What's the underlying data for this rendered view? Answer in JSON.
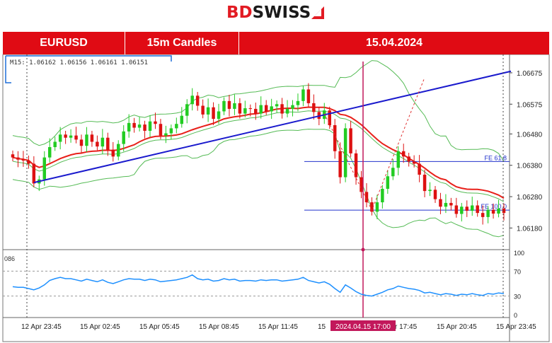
{
  "brand": {
    "part1": "BD",
    "part2": "SWISS",
    "red": "#e21b23"
  },
  "header": {
    "symbol": "EURUSD",
    "timeframe": "15m Candles",
    "date": "15.04.2024",
    "bg": "#e00b14"
  },
  "chart_data": {
    "type": "candlestick",
    "info_line": "M15: 1.06162 1.06156 1.06161 1.06151",
    "ylim": [
      1.0612,
      1.0672
    ],
    "y_ticks": [
      1.06675,
      1.06575,
      1.0648,
      1.0638,
      1.0628,
      1.0618
    ],
    "y_tick_labels": [
      "1.06675",
      "1.06575",
      "1.06480",
      "1.06380",
      "1.06280",
      "1.06180"
    ],
    "x_tick_labels": [
      "12 Apr 23:45",
      "15 Apr 02:45",
      "15 Apr 05:45",
      "15 Apr 08:45",
      "15 Apr 11:45",
      "15 Apr 14:45",
      "15 Apr 17:45",
      "15 Apr 20:45",
      "15 Apr 23:45"
    ],
    "x_tick_prefix_visible": "15",
    "x_tick_suffix_visible": "r 17:45",
    "crosshair_label": "2024.04.15 17:00",
    "fib_levels": [
      {
        "label": "FE 61.8",
        "value": 1.06392
      },
      {
        "label": "FE 100.0",
        "value": 1.06237
      }
    ],
    "trendline": {
      "from": 1.06325,
      "to": 1.0668,
      "color": "#1a1acd"
    },
    "colors": {
      "bull": "#22cc22",
      "bear": "#dd1111",
      "ma": "#e8201a",
      "bands": "#55bb55",
      "rsi": "#1e90ff",
      "crosshair": "#c2185b",
      "fib": "#2233cc"
    },
    "close": [
      1.06405,
      1.06398,
      1.06395,
      1.06385,
      1.06322,
      1.06335,
      1.06405,
      1.06438,
      1.06455,
      1.06478,
      1.06468,
      1.06475,
      1.06462,
      1.06442,
      1.06478,
      1.06455,
      1.0644,
      1.06468,
      1.0643,
      1.06408,
      1.06448,
      1.06488,
      1.06515,
      1.065,
      1.0651,
      1.0649,
      1.0652,
      1.06512,
      1.06475,
      1.06482,
      1.06498,
      1.06512,
      1.06538,
      1.06575,
      1.06602,
      1.0657,
      1.06542,
      1.06565,
      1.06528,
      1.06552,
      1.06585,
      1.0656,
      1.06578,
      1.06545,
      1.06562,
      1.0656,
      1.06545,
      1.06572,
      1.06552,
      1.06568,
      1.06575,
      1.06545,
      1.0656,
      1.06572,
      1.06585,
      1.06622,
      1.06578,
      1.0655,
      1.06528,
      1.06555,
      1.06508,
      1.06425,
      1.06342,
      1.06498,
      1.06418,
      1.06342,
      1.06295,
      1.06262,
      1.06232,
      1.06262,
      1.06305,
      1.06345,
      1.06372,
      1.06425,
      1.06408,
      1.06392,
      1.06385,
      1.0635,
      1.06298,
      1.06302,
      1.06272,
      1.06248,
      1.0626,
      1.06252,
      1.06225,
      1.06248,
      1.06235,
      1.06252,
      1.06228,
      1.06215,
      1.06238,
      1.06226,
      1.06242,
      1.06228
    ],
    "rsi_ticks": [
      100,
      70,
      30,
      0
    ],
    "rsi_label_partial": "086",
    "rsi": [
      45,
      44,
      44,
      42,
      40,
      43,
      48,
      55,
      58,
      60,
      58,
      58,
      56,
      54,
      57,
      55,
      53,
      56,
      52,
      50,
      53,
      56,
      58,
      57,
      57,
      55,
      57,
      56,
      53,
      54,
      55,
      56,
      58,
      60,
      64,
      58,
      56,
      57,
      54,
      55,
      58,
      56,
      57,
      54,
      55,
      55,
      54,
      56,
      55,
      56,
      56,
      54,
      55,
      56,
      57,
      60,
      55,
      53,
      51,
      53,
      49,
      42,
      36,
      48,
      43,
      37,
      33,
      31,
      30,
      33,
      36,
      40,
      42,
      46,
      44,
      42,
      41,
      39,
      35,
      36,
      34,
      32,
      34,
      33,
      31,
      33,
      32,
      34,
      32,
      31,
      34,
      33,
      35,
      34
    ]
  }
}
